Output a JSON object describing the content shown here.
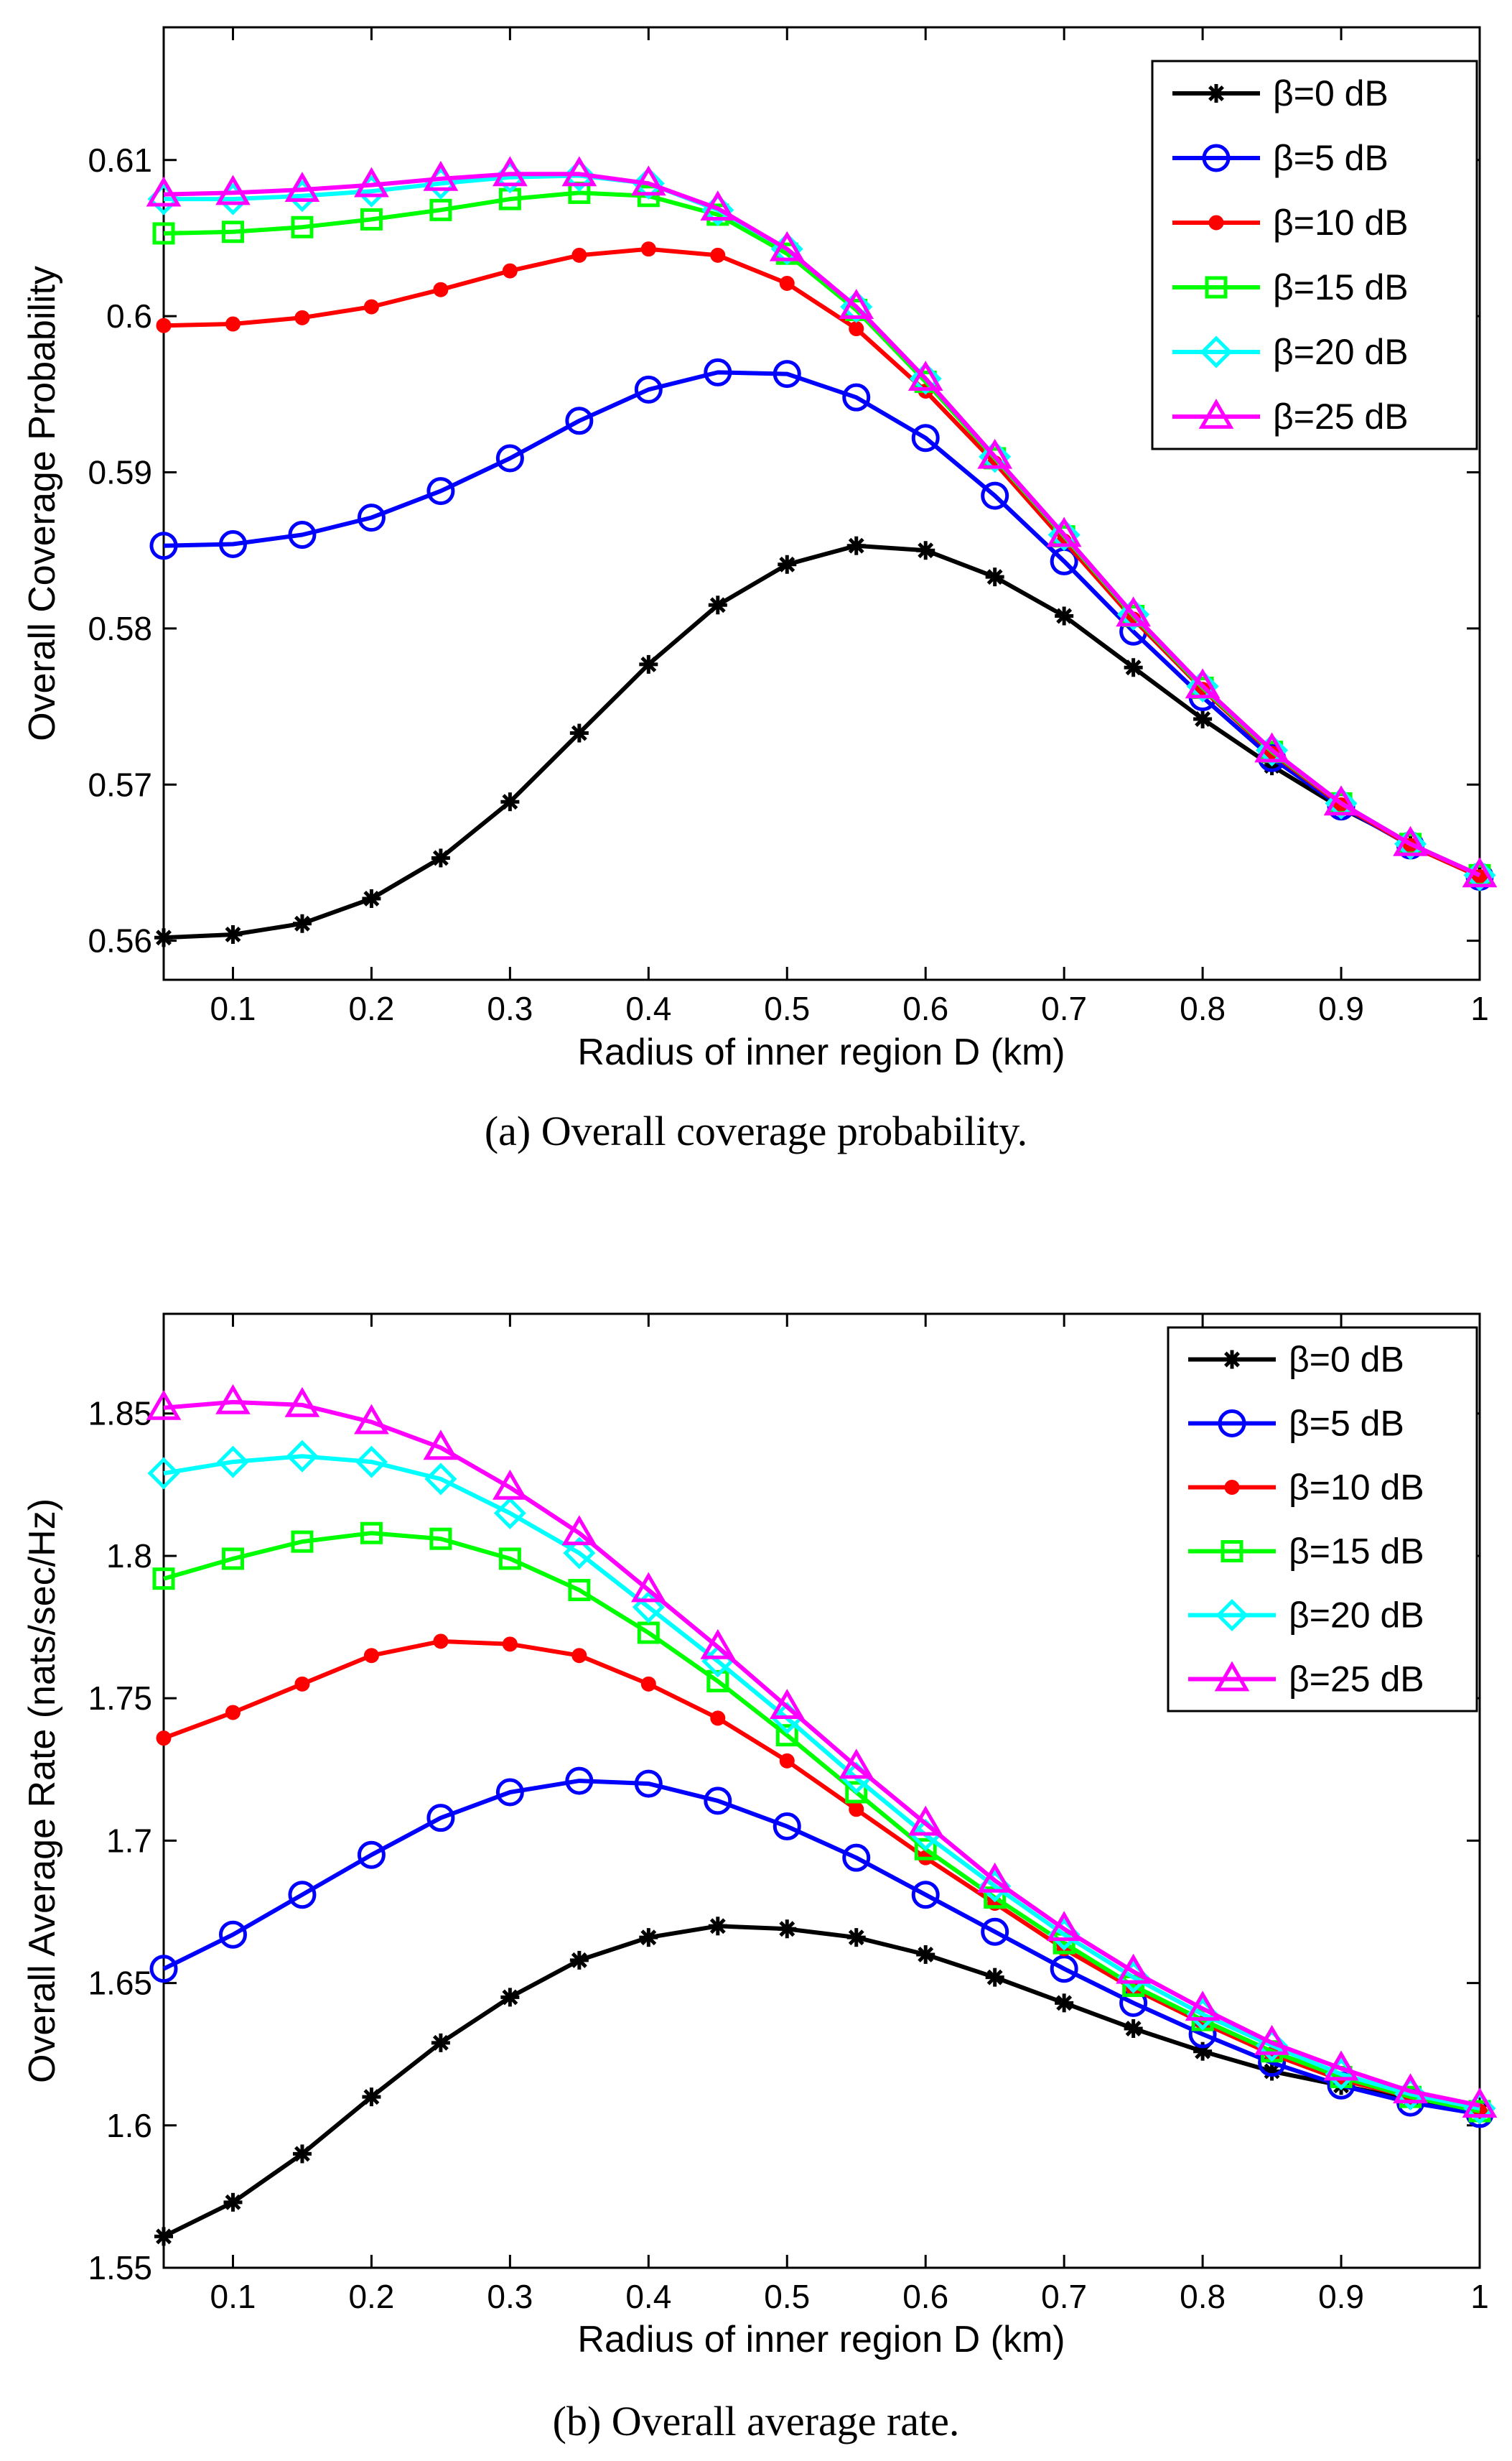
{
  "chart_data": [
    {
      "type": "line",
      "caption": "(a)  Overall coverage probability.",
      "xlabel": "Radius of inner region D (km)",
      "ylabel": "Overall Coverage Probability",
      "xlim": [
        0.05,
        1
      ],
      "ylim": [
        0.5575,
        0.6185
      ],
      "xticks": [
        0.1,
        0.2,
        0.3,
        0.4,
        0.5,
        0.6,
        0.7,
        0.8,
        0.9,
        1
      ],
      "xtick_labels": [
        "0.1",
        "0.2",
        "0.3",
        "0.4",
        "0.5",
        "0.6",
        "0.7",
        "0.8",
        "0.9",
        "1"
      ],
      "yticks": [
        0.56,
        0.57,
        0.58,
        0.59,
        0.6,
        0.61
      ],
      "ytick_labels": [
        "0.56",
        "0.57",
        "0.58",
        "0.59",
        "0.6",
        "0.61"
      ],
      "legend_position": "top-right",
      "x": [
        0.05,
        0.1,
        0.15,
        0.2,
        0.25,
        0.3,
        0.35,
        0.4,
        0.45,
        0.5,
        0.55,
        0.6,
        0.65,
        0.7,
        0.75,
        0.8,
        0.85,
        0.9,
        0.95,
        1.0
      ],
      "series": [
        {
          "name": "β=0 dB",
          "color": "#000000",
          "marker": "asterisk",
          "values": [
            0.5602,
            0.5604,
            0.5611,
            0.5627,
            0.5653,
            0.5689,
            0.5733,
            0.5777,
            0.5815,
            0.5841,
            0.5853,
            0.585,
            0.5833,
            0.5808,
            0.5775,
            0.5742,
            0.5712,
            0.5685,
            0.5662,
            0.5641
          ]
        },
        {
          "name": "β=5 dB",
          "color": "#0000ff",
          "marker": "circle",
          "values": [
            0.5853,
            0.5854,
            0.586,
            0.5871,
            0.5888,
            0.5909,
            0.5933,
            0.5953,
            0.5964,
            0.5963,
            0.5948,
            0.5922,
            0.5885,
            0.5843,
            0.5798,
            0.5756,
            0.5717,
            0.5686,
            0.5661,
            0.5641
          ]
        },
        {
          "name": "β=10 dB",
          "color": "#ff0000",
          "marker": "dot",
          "values": [
            0.5994,
            0.5995,
            0.5999,
            0.6006,
            0.6017,
            0.6029,
            0.6039,
            0.6043,
            0.6039,
            0.6021,
            0.5992,
            0.5952,
            0.5906,
            0.5856,
            0.5806,
            0.5761,
            0.572,
            0.5687,
            0.5661,
            0.5641
          ]
        },
        {
          "name": "β=15 dB",
          "color": "#00ff00",
          "marker": "square",
          "values": [
            0.6053,
            0.6054,
            0.6057,
            0.6062,
            0.6068,
            0.6075,
            0.6079,
            0.6077,
            0.6065,
            0.604,
            0.6004,
            0.5958,
            0.5909,
            0.5859,
            0.5808,
            0.5762,
            0.5721,
            0.5688,
            0.5662,
            0.5642
          ]
        },
        {
          "name": "β=20 dB",
          "color": "#00ffff",
          "marker": "diamond",
          "values": [
            0.6075,
            0.6075,
            0.6077,
            0.608,
            0.6085,
            0.6089,
            0.609,
            0.6085,
            0.6068,
            0.6043,
            0.6006,
            0.596,
            0.591,
            0.586,
            0.5809,
            0.5763,
            0.5722,
            0.5688,
            0.5662,
            0.5642
          ]
        },
        {
          "name": "β=25 dB",
          "color": "#ff00ff",
          "marker": "triangle",
          "values": [
            0.6078,
            0.6079,
            0.6081,
            0.6084,
            0.6088,
            0.6091,
            0.6091,
            0.6085,
            0.6069,
            0.6043,
            0.6006,
            0.596,
            0.591,
            0.586,
            0.5809,
            0.5763,
            0.5722,
            0.5688,
            0.5662,
            0.5642
          ]
        }
      ]
    },
    {
      "type": "line",
      "caption": "(b)  Overall average rate.",
      "xlabel": "Radius of inner region D (km)",
      "ylabel": "Overall Average Rate (nats/sec/Hz)",
      "xlim": [
        0.05,
        1
      ],
      "ylim": [
        1.55,
        1.885
      ],
      "xticks": [
        0.1,
        0.2,
        0.3,
        0.4,
        0.5,
        0.6,
        0.7,
        0.8,
        0.9,
        1
      ],
      "xtick_labels": [
        "0.1",
        "0.2",
        "0.3",
        "0.4",
        "0.5",
        "0.6",
        "0.7",
        "0.8",
        "0.9",
        "1"
      ],
      "yticks": [
        1.55,
        1.6,
        1.65,
        1.7,
        1.75,
        1.8,
        1.85
      ],
      "ytick_labels": [
        "1.55",
        "1.6",
        "1.65",
        "1.7",
        "1.75",
        "1.8",
        "1.85"
      ],
      "legend_position": "top-right",
      "x": [
        0.05,
        0.1,
        0.15,
        0.2,
        0.25,
        0.3,
        0.35,
        0.4,
        0.45,
        0.5,
        0.55,
        0.6,
        0.65,
        0.7,
        0.75,
        0.8,
        0.85,
        0.9,
        0.95,
        1.0
      ],
      "series": [
        {
          "name": "β=0 dB",
          "color": "#000000",
          "marker": "asterisk",
          "values": [
            1.561,
            1.573,
            1.59,
            1.61,
            1.629,
            1.645,
            1.658,
            1.666,
            1.67,
            1.669,
            1.666,
            1.66,
            1.652,
            1.643,
            1.634,
            1.626,
            1.619,
            1.614,
            1.609,
            1.605
          ]
        },
        {
          "name": "β=5 dB",
          "color": "#0000ff",
          "marker": "circle",
          "values": [
            1.655,
            1.667,
            1.681,
            1.695,
            1.708,
            1.717,
            1.721,
            1.72,
            1.714,
            1.705,
            1.694,
            1.681,
            1.668,
            1.655,
            1.643,
            1.632,
            1.622,
            1.614,
            1.608,
            1.604
          ]
        },
        {
          "name": "β=10 dB",
          "color": "#ff0000",
          "marker": "dot",
          "values": [
            1.736,
            1.745,
            1.755,
            1.765,
            1.77,
            1.769,
            1.765,
            1.755,
            1.743,
            1.728,
            1.711,
            1.694,
            1.678,
            1.662,
            1.648,
            1.636,
            1.625,
            1.616,
            1.61,
            1.605
          ]
        },
        {
          "name": "β=15 dB",
          "color": "#00ff00",
          "marker": "square",
          "values": [
            1.792,
            1.799,
            1.805,
            1.808,
            1.806,
            1.799,
            1.788,
            1.773,
            1.756,
            1.737,
            1.717,
            1.697,
            1.68,
            1.664,
            1.649,
            1.637,
            1.626,
            1.617,
            1.61,
            1.605
          ]
        },
        {
          "name": "β=20 dB",
          "color": "#00ffff",
          "marker": "diamond",
          "values": [
            1.829,
            1.833,
            1.835,
            1.833,
            1.827,
            1.815,
            1.801,
            1.782,
            1.763,
            1.743,
            1.722,
            1.702,
            1.684,
            1.667,
            1.652,
            1.639,
            1.628,
            1.618,
            1.611,
            1.606
          ]
        },
        {
          "name": "β=25 dB",
          "color": "#ff00ff",
          "marker": "triangle",
          "values": [
            1.852,
            1.854,
            1.853,
            1.847,
            1.838,
            1.824,
            1.808,
            1.788,
            1.768,
            1.747,
            1.726,
            1.706,
            1.686,
            1.669,
            1.654,
            1.641,
            1.629,
            1.62,
            1.612,
            1.607
          ]
        }
      ]
    }
  ]
}
